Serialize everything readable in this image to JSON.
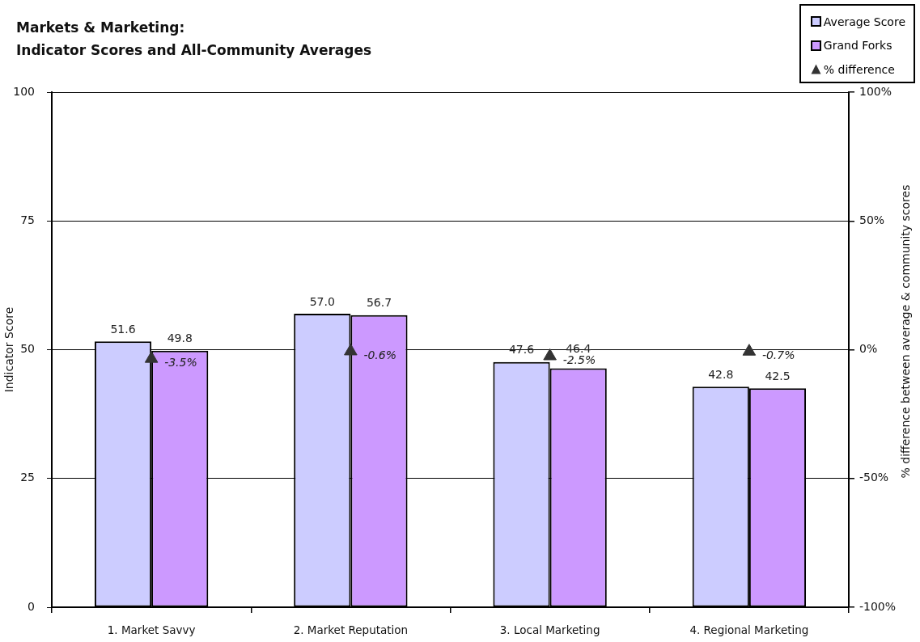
{
  "chart_data": {
    "type": "bar",
    "title": "Markets & Marketing:",
    "subtitle": "Indicator Scores and All-Community Averages",
    "ylabel": "Indicator Score",
    "y2label": "% difference between average & community scores",
    "categories": [
      "1. Market Savvy",
      "2. Market Reputation",
      "3. Local Marketing",
      "4. Regional Marketing"
    ],
    "series": [
      {
        "name": "Average Score",
        "color": "#ccccff",
        "values": [
          51.6,
          57.0,
          47.6,
          42.8
        ],
        "value_labels": [
          "51.6",
          "57.0",
          "47.6",
          "42.8"
        ]
      },
      {
        "name": "Grand Forks",
        "color": "#cc99ff",
        "values": [
          49.8,
          56.7,
          46.4,
          42.5
        ],
        "value_labels": [
          "49.8",
          "56.7",
          "46.4",
          "42.5"
        ]
      },
      {
        "name": "% difference",
        "type": "scatter",
        "axis": "y2",
        "color": "#333333",
        "x": [
          "1. Market Savvy",
          "2. Market Reputation",
          "3. Local Marketing",
          "4. Regional Marketing"
        ],
        "values": [
          -3.5,
          -0.6,
          -2.5,
          -0.7
        ],
        "value_labels": [
          "-3.5%",
          "-0.6%",
          "-2.5%",
          "-0.7%"
        ]
      }
    ],
    "ylim": [
      0,
      100
    ],
    "yticks": [
      0,
      25,
      50,
      75,
      100
    ],
    "y2lim": [
      -100,
      100
    ],
    "y2ticks": [
      {
        "value": -100,
        "label": "-100%"
      },
      {
        "value": -50,
        "label": "-50%"
      },
      {
        "value": 0,
        "label": "0%"
      },
      {
        "value": 50,
        "label": "50%"
      },
      {
        "value": 100,
        "label": "100%"
      }
    ],
    "grid": "y",
    "legend": "top right",
    "marker": "triangle"
  }
}
